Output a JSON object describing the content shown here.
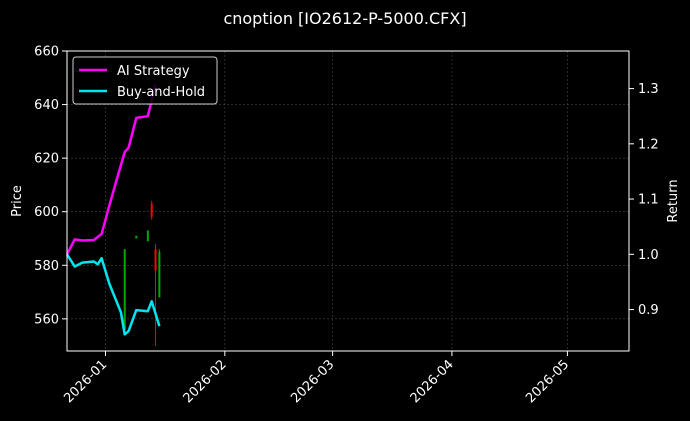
{
  "chart_data": {
    "type": "line",
    "title": "cnoption [IO2612-P-5000.CFX]",
    "xlabel": "",
    "ylabel": "Price",
    "y2label": "Return",
    "xlim": [
      "2025-12-22",
      "2026-05-17"
    ],
    "ylim": [
      548,
      660
    ],
    "y2lim": [
      0.825,
      1.368
    ],
    "xticks": [
      "2026-01",
      "2026-02",
      "2026-03",
      "2026-04",
      "2026-05"
    ],
    "xtick_dates": [
      "2026-01-01",
      "2026-02-01",
      "2026-03-01",
      "2026-04-01",
      "2026-05-01"
    ],
    "yticks": [
      560,
      580,
      600,
      620,
      640,
      660
    ],
    "y2ticks": [
      0.9,
      1.0,
      1.1,
      1.2,
      1.3
    ],
    "grid": true,
    "legend_position": "top-left",
    "background": "#000000",
    "series": [
      {
        "name": "AI Strategy",
        "axis": "right",
        "color": "#ff00ff",
        "points": [
          [
            "2025-12-22",
            1.0
          ],
          [
            "2025-12-24",
            1.027
          ],
          [
            "2025-12-26",
            1.025
          ],
          [
            "2025-12-29",
            1.026
          ],
          [
            "2025-12-31",
            1.037
          ],
          [
            "2026-01-02",
            1.088
          ],
          [
            "2026-01-04",
            1.137
          ],
          [
            "2026-01-06",
            1.185
          ],
          [
            "2026-01-07",
            1.193
          ],
          [
            "2026-01-09",
            1.247
          ],
          [
            "2026-01-12",
            1.25
          ],
          [
            "2026-01-14",
            1.307
          ]
        ]
      },
      {
        "name": "Buy-and-Hold",
        "axis": "right",
        "color": "#00e5ee",
        "points": [
          [
            "2025-12-22",
            1.0
          ],
          [
            "2025-12-24",
            0.978
          ],
          [
            "2025-12-26",
            0.985
          ],
          [
            "2025-12-29",
            0.987
          ],
          [
            "2025-12-30",
            0.982
          ],
          [
            "2025-12-31",
            0.993
          ],
          [
            "2026-01-02",
            0.947
          ],
          [
            "2026-01-05",
            0.895
          ],
          [
            "2026-01-06",
            0.855
          ],
          [
            "2026-01-07",
            0.861
          ],
          [
            "2026-01-09",
            0.899
          ],
          [
            "2026-01-12",
            0.897
          ],
          [
            "2026-01-13",
            0.915
          ],
          [
            "2026-01-15",
            0.87
          ]
        ]
      }
    ],
    "candles": [
      {
        "date": "2026-01-06",
        "open": 586,
        "high": 586,
        "low": 556,
        "close": 556,
        "color": "#00aa00"
      },
      {
        "date": "2026-01-09",
        "open": 591,
        "high": 591,
        "low": 590,
        "close": 590,
        "color": "#00aa00"
      },
      {
        "date": "2026-01-12",
        "open": 593,
        "high": 593,
        "low": 589,
        "close": 589,
        "color": "#00aa00"
      },
      {
        "date": "2026-01-13",
        "open": 598,
        "high": 604,
        "low": 597,
        "close": 603,
        "color": "#ff0000"
      },
      {
        "date": "2026-01-14",
        "open": 578,
        "high": 588,
        "low": 550,
        "close": 586,
        "color": "#ff0000"
      },
      {
        "date": "2026-01-15",
        "open": 585,
        "high": 586,
        "low": 568,
        "close": 568,
        "color": "#00aa00"
      }
    ]
  }
}
